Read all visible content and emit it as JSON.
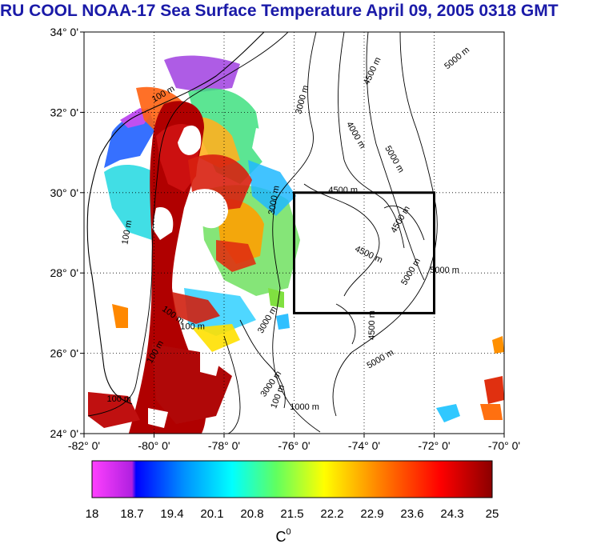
{
  "title": "RU COOL  NOAA-17 Sea Surface Temperature April 09, 2005 0318 GMT",
  "map": {
    "lon_range": [
      -82,
      -70
    ],
    "lat_range": [
      24,
      34
    ],
    "lon_ticks": [
      {
        "value": -82,
        "label": "-82° 0'"
      },
      {
        "value": -80,
        "label": "-80° 0'"
      },
      {
        "value": -78,
        "label": "-78° 0'"
      },
      {
        "value": -76,
        "label": "-76° 0'"
      },
      {
        "value": -74,
        "label": "-74° 0'"
      },
      {
        "value": -72,
        "label": "-72° 0'"
      },
      {
        "value": -70,
        "label": "-70° 0'"
      }
    ],
    "lat_ticks": [
      {
        "value": 34,
        "label": "34° 0'"
      },
      {
        "value": 32,
        "label": "32° 0'"
      },
      {
        "value": 30,
        "label": "30° 0'"
      },
      {
        "value": 28,
        "label": "28° 0'"
      },
      {
        "value": 26,
        "label": "26° 0'"
      },
      {
        "value": 24,
        "label": "24° 0'"
      }
    ],
    "study_box": {
      "lon_min": -76,
      "lon_max": -72,
      "lat_min": 27,
      "lat_max": 30
    },
    "grid": true,
    "contour_labels": [
      {
        "text": "5000 m",
        "lon": -71.3,
        "lat": 33.3,
        "angle": -40
      },
      {
        "text": "4500 m",
        "lon": -73.7,
        "lat": 33.0,
        "angle": -65
      },
      {
        "text": "3000 m",
        "lon": -75.7,
        "lat": 32.3,
        "angle": -75
      },
      {
        "text": "4000 m",
        "lon": -74.3,
        "lat": 31.4,
        "angle": 60
      },
      {
        "text": "5000 m",
        "lon": -73.2,
        "lat": 30.8,
        "angle": 60
      },
      {
        "text": "4500 m",
        "lon": -74.6,
        "lat": 30.0,
        "angle": 0
      },
      {
        "text": "4500 m",
        "lon": -72.9,
        "lat": 29.3,
        "angle": -60
      },
      {
        "text": "4500 m",
        "lon": -73.9,
        "lat": 28.4,
        "angle": 25
      },
      {
        "text": "5000 m",
        "lon": -72.6,
        "lat": 28.0,
        "angle": -60
      },
      {
        "text": "5000 m",
        "lon": -71.7,
        "lat": 28.0,
        "angle": 0
      },
      {
        "text": "4500 m",
        "lon": -73.7,
        "lat": 26.7,
        "angle": -90
      },
      {
        "text": "5000 m",
        "lon": -73.5,
        "lat": 25.8,
        "angle": -30
      },
      {
        "text": "3000 m",
        "lon": -76.5,
        "lat": 29.8,
        "angle": -80
      },
      {
        "text": "100 m",
        "lon": -79.7,
        "lat": 32.4,
        "angle": -30
      },
      {
        "text": "100 m",
        "lon": -80.7,
        "lat": 29.0,
        "angle": -80
      },
      {
        "text": "100 m",
        "lon": -79.5,
        "lat": 26.9,
        "angle": 35
      },
      {
        "text": "100 m",
        "lon": -78.9,
        "lat": 26.6,
        "angle": 0
      },
      {
        "text": "100 m",
        "lon": -79.9,
        "lat": 26.0,
        "angle": -60
      },
      {
        "text": "100 m",
        "lon": -81.0,
        "lat": 24.8,
        "angle": 0
      },
      {
        "text": "100 m",
        "lon": -76.4,
        "lat": 24.9,
        "angle": -70
      },
      {
        "text": "3000 m",
        "lon": -76.7,
        "lat": 26.8,
        "angle": -60
      },
      {
        "text": "3000 m",
        "lon": -76.6,
        "lat": 25.2,
        "angle": -55
      },
      {
        "text": "1000 m",
        "lon": -75.7,
        "lat": 24.6,
        "angle": 0
      }
    ]
  },
  "colorbar": {
    "min": 18,
    "max": 25,
    "tick_labels": [
      "18",
      "18.7",
      "19.4",
      "20.1",
      "20.8",
      "21.5",
      "22.2",
      "22.9",
      "23.6",
      "24.3",
      "25"
    ],
    "unit_label": "C",
    "unit_superscript": "0"
  }
}
